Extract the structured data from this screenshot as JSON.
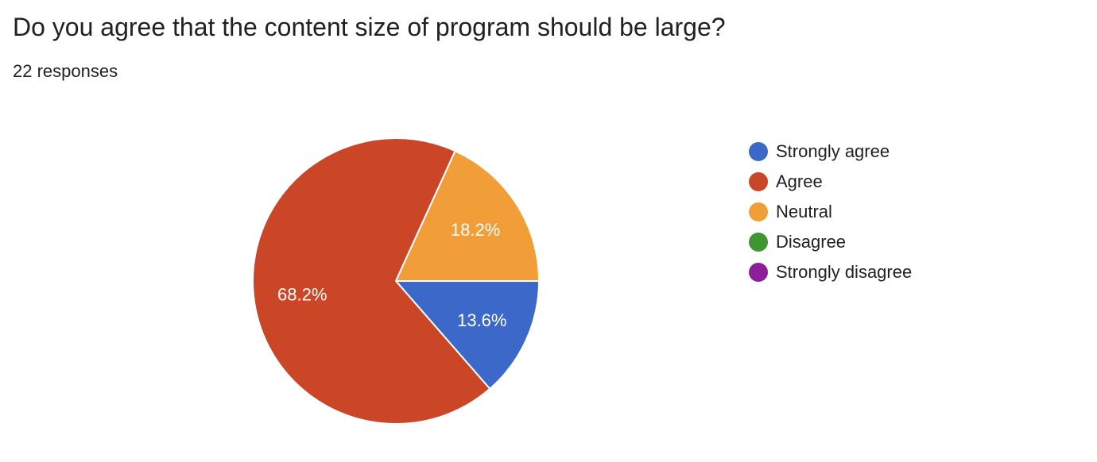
{
  "question": {
    "title": "Do you agree that the content size of program should be large?",
    "responses": "22 responses"
  },
  "chart_data": {
    "type": "pie",
    "title": "Do you agree that the content size of program should be large?",
    "total_responses": 22,
    "slices": [
      {
        "name": "Strongly agree",
        "value": 13.6,
        "label": "13.6%",
        "color": "#3c68c9"
      },
      {
        "name": "Agree",
        "value": 68.2,
        "label": "68.2%",
        "color": "#cb4527"
      },
      {
        "name": "Neutral",
        "value": 18.2,
        "label": "18.2%",
        "color": "#f29e38"
      },
      {
        "name": "Disagree",
        "value": 0,
        "label": "",
        "color": "#3f952f"
      },
      {
        "name": "Strongly disagree",
        "value": 0,
        "label": "",
        "color": "#8c1e99"
      }
    ],
    "legend_position": "right",
    "start_direction": "east",
    "direction": "clockwise"
  }
}
